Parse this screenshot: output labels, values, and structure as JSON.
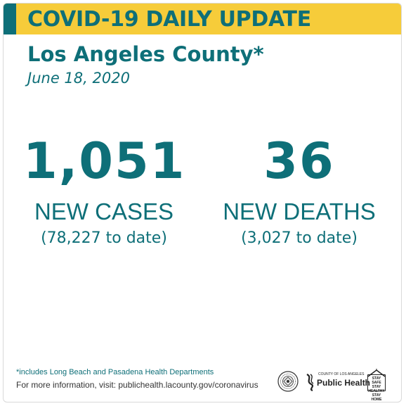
{
  "banner": {
    "title": "COVID-19 DAILY UPDATE"
  },
  "header": {
    "county": "Los Angeles County*",
    "date": "June 18, 2020"
  },
  "stats": {
    "cases": {
      "value": "1,051",
      "label": "NEW CASES",
      "to_date": "(78,227 to date)"
    },
    "deaths": {
      "value": "36",
      "label": "NEW DEATHS",
      "to_date": "(3,027 to date)"
    }
  },
  "footer": {
    "footnote": "*includes Long Beach and Pasadena Health Departments",
    "more_info": "For more information, visit: publichealth.lacounty.gov/coronavirus",
    "ph_logo_small": "COUNTY OF LOS ANGELES",
    "ph_logo_big": "Public Health",
    "stay_safe": [
      "STAY SAFE",
      "STAY HEALTHY",
      "STAY HOME"
    ]
  },
  "colors": {
    "teal": "#0e6f78",
    "yellow": "#f6cc3a"
  },
  "icons": [
    "county-seal-icon",
    "public-health-logo",
    "stay-safe-house-icon"
  ]
}
